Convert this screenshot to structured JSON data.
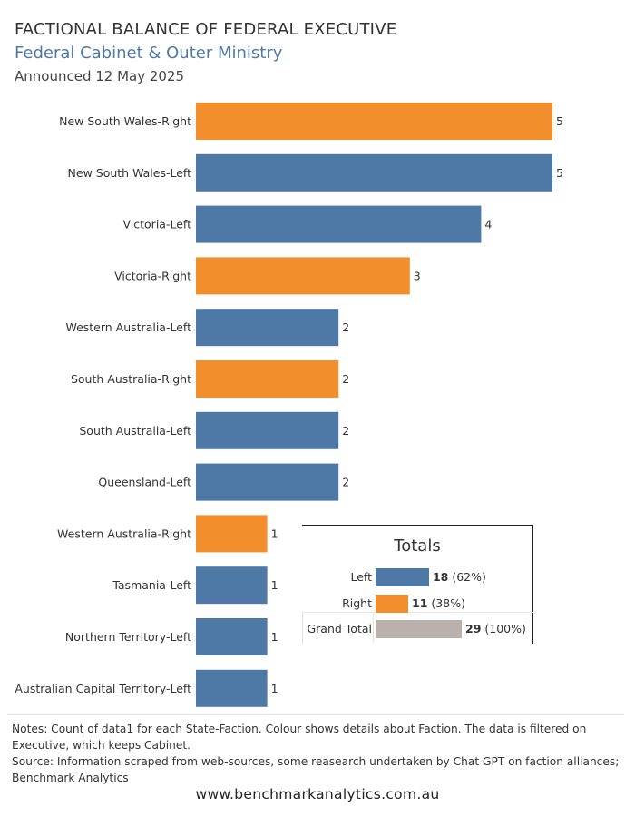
{
  "header": {
    "title": "FACTIONAL BALANCE OF FEDERAL EXECUTIVE",
    "subtitle": "Federal Cabinet & Outer Ministry",
    "date": "Announced 12 May 2025"
  },
  "colors": {
    "left": "#4e79a7",
    "right": "#f28e2b",
    "total": "#bab0ac"
  },
  "chart_data": {
    "type": "bar",
    "orientation": "horizontal",
    "categories": [
      "New South Wales-Right",
      "New South Wales-Left",
      "Victoria-Left",
      "Victoria-Right",
      "Western Australia-Left",
      "South Australia-Right",
      "South Australia-Left",
      "Queensland-Left",
      "Western Australia-Right",
      "Tasmania-Left",
      "Northern Territory-Left",
      "Australian Capital Territory-Left"
    ],
    "values": [
      5,
      5,
      4,
      3,
      2,
      2,
      2,
      2,
      1,
      1,
      1,
      1
    ],
    "faction": [
      "Right",
      "Left",
      "Left",
      "Right",
      "Left",
      "Right",
      "Left",
      "Left",
      "Right",
      "Left",
      "Left",
      "Left"
    ],
    "xlim": [
      0,
      5
    ],
    "grid": false,
    "data_labels": true
  },
  "totals": {
    "title": "Totals",
    "rows": [
      {
        "label": "Left",
        "count": "18",
        "pct": "(62%)",
        "value": 18,
        "key": "left"
      },
      {
        "label": "Right",
        "count": "11",
        "pct": "(38%)",
        "value": 11,
        "key": "right"
      },
      {
        "label": "Grand Total",
        "count": "29",
        "pct": "(100%)",
        "value": 29,
        "key": "total"
      }
    ]
  },
  "notes": {
    "line1": "Notes: Count of data1 for each State-Faction.  Colour shows details about Faction. The data is filtered on",
    "line2": "Executive, which keeps Cabinet.",
    "line3": "Source: Information scraped from web-sources, some reasearch undertaken by Chat GPT on faction alliances;",
    "line4": "Benchmark Analytics"
  },
  "footer": {
    "website": "www.benchmarkanalytics.com.au"
  }
}
